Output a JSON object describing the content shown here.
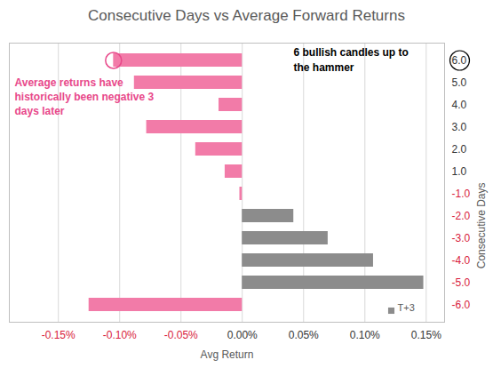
{
  "chart_data": {
    "type": "bar",
    "orientation": "horizontal",
    "title": "Consecutive Days vs Average Forward Returns",
    "xlabel": "Avg Return",
    "ylabel": "Consecutive Days",
    "categories": [
      "6.0",
      "5.0",
      "4.0",
      "3.0",
      "2.0",
      "1.0",
      "-1.0",
      "-2.0",
      "-3.0",
      "-4.0",
      "-5.0",
      "-6.0"
    ],
    "series": [
      {
        "name": "T+3",
        "color": "#8c8c8c",
        "colors": [
          "#f27ba8",
          "#f27ba8",
          "#f27ba8",
          "#f27ba8",
          "#f27ba8",
          "#f27ba8",
          "#f27ba8",
          "#8c8c8c",
          "#8c8c8c",
          "#8c8c8c",
          "#8c8c8c",
          "#f27ba8"
        ],
        "values": [
          -0.105,
          -0.088,
          -0.019,
          -0.078,
          -0.038,
          -0.014,
          -0.002,
          0.042,
          0.07,
          0.107,
          0.148,
          -0.125
        ]
      }
    ],
    "xlim": [
      -0.19,
      0.165
    ],
    "xticks": [
      {
        "value": -0.15,
        "label": "-0.15%"
      },
      {
        "value": -0.1,
        "label": "-0.10%"
      },
      {
        "value": -0.05,
        "label": "-0.05%"
      },
      {
        "value": 0,
        "label": "0.00%"
      },
      {
        "value": 0.05,
        "label": "0.05%"
      },
      {
        "value": 0.1,
        "label": "0.10%"
      },
      {
        "value": 0.15,
        "label": "0.15%"
      }
    ],
    "grid": true,
    "legend": "bottom-right",
    "annotations": [
      {
        "text": "Average returns have\nhistorically been negative 3\ndays later",
        "color": "#e8488a"
      },
      {
        "text": "6 bullish candles up to\nthe hammer",
        "color": "#000000"
      }
    ]
  }
}
